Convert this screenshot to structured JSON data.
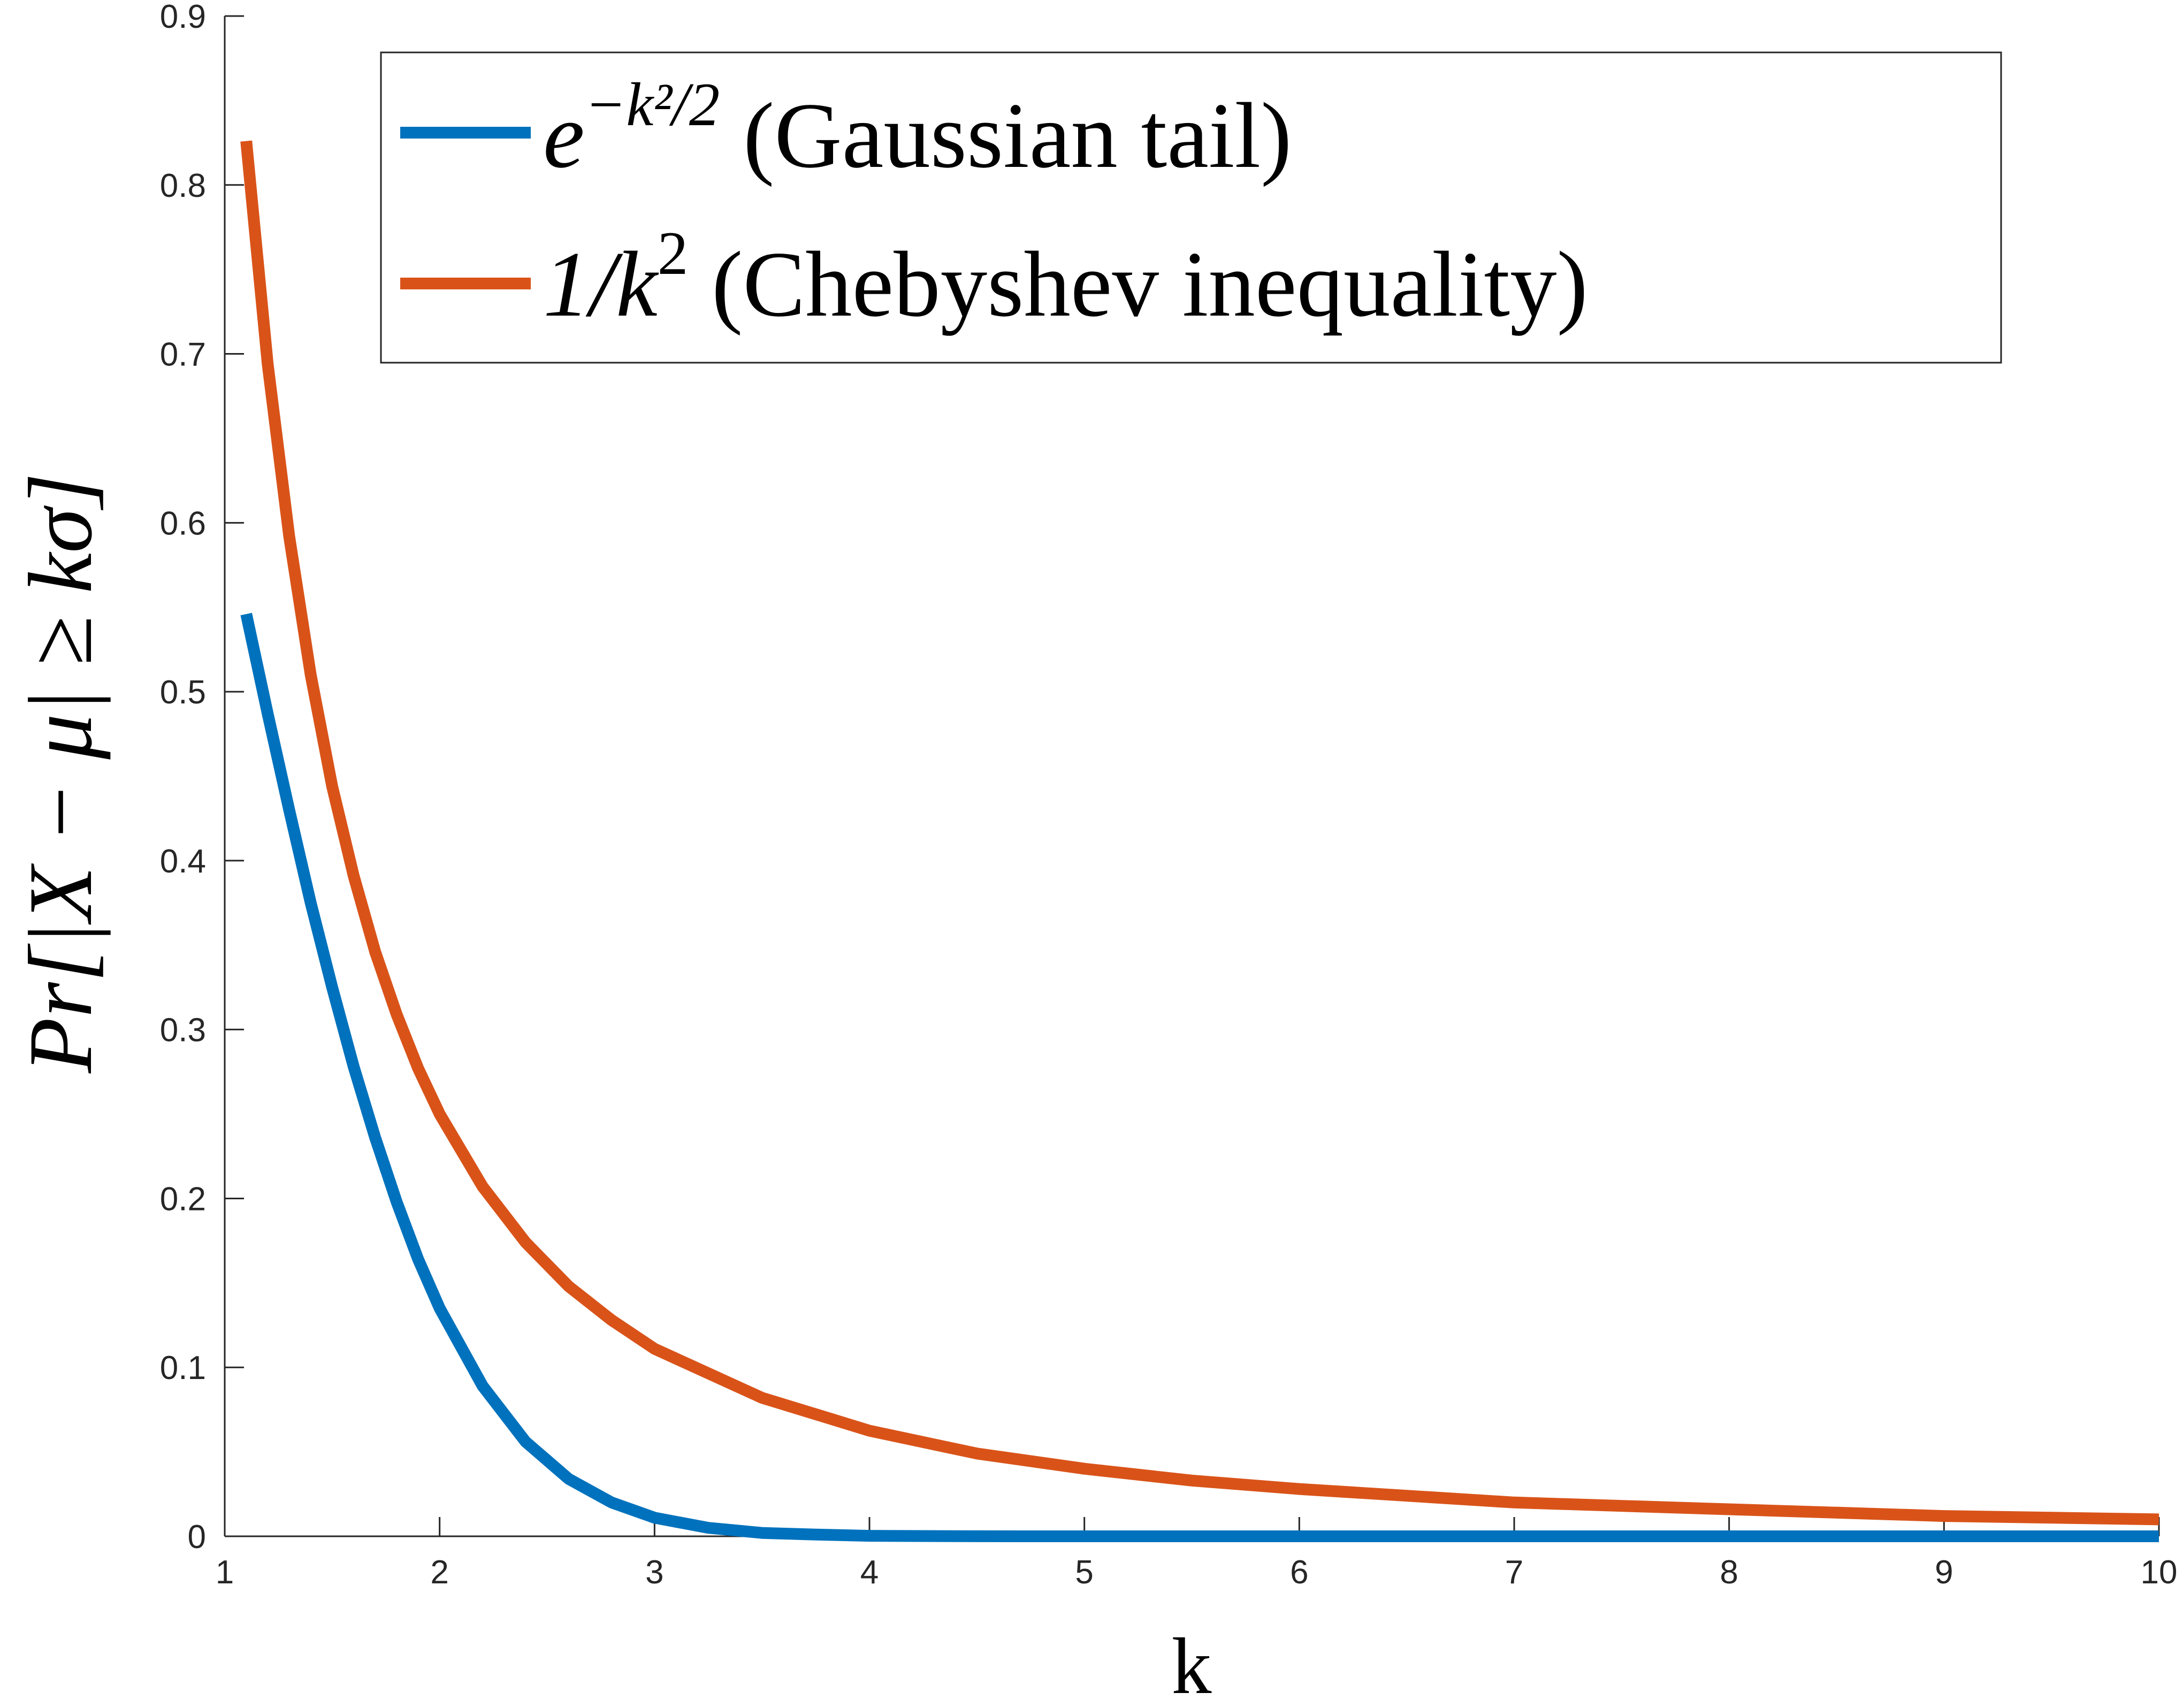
{
  "chart_data": {
    "type": "line",
    "title": "",
    "xlabel": "k",
    "ylabel": "Pr[|X − μ| ≥ kσ]",
    "xlim": [
      1,
      10
    ],
    "ylim": [
      0,
      0.9
    ],
    "grid": false,
    "x_ticks": [
      "1",
      "2",
      "3",
      "4",
      "5",
      "6",
      "7",
      "8",
      "9",
      "10"
    ],
    "y_ticks": [
      "0",
      "0.1",
      "0.2",
      "0.3",
      "0.4",
      "0.5",
      "0.6",
      "0.7",
      "0.8",
      "0.9"
    ],
    "legend": {
      "placement": "top-right",
      "entries": [
        {
          "series": 0,
          "base": "e",
          "sup": "−k²/2",
          "text": "(Gaussian tail)"
        },
        {
          "series": 1,
          "base": "1/k",
          "sup": "2",
          "text": "(Chebyshev inequality)"
        }
      ]
    },
    "series": [
      {
        "name": "e^{-k^2/2} (Gaussian tail)",
        "color": "#0072BD",
        "x": [
          1.1,
          1.2,
          1.3,
          1.4,
          1.5,
          1.6,
          1.7,
          1.8,
          1.9,
          2.0,
          2.2,
          2.4,
          2.6,
          2.8,
          3.0,
          3.25,
          3.5,
          3.75,
          4.0,
          4.5,
          5,
          6,
          7,
          8,
          9,
          10
        ],
        "y": [
          0.546,
          0.487,
          0.43,
          0.375,
          0.325,
          0.278,
          0.236,
          0.198,
          0.164,
          0.135,
          0.089,
          0.056,
          0.034,
          0.02,
          0.011,
          0.005,
          0.002,
          0.001,
          0.0003,
          4e-05,
          0,
          0,
          0,
          0,
          0,
          0
        ]
      },
      {
        "name": "1/k^2 (Chebyshev inequality)",
        "color": "#D95319",
        "x": [
          1.1,
          1.2,
          1.3,
          1.4,
          1.5,
          1.6,
          1.7,
          1.8,
          1.9,
          2.0,
          2.2,
          2.4,
          2.6,
          2.8,
          3.0,
          3.5,
          4.0,
          4.5,
          5,
          5.5,
          6,
          7,
          8,
          9,
          10
        ],
        "y": [
          0.826,
          0.694,
          0.592,
          0.51,
          0.444,
          0.391,
          0.346,
          0.309,
          0.277,
          0.25,
          0.207,
          0.174,
          0.148,
          0.128,
          0.111,
          0.082,
          0.0625,
          0.049,
          0.04,
          0.033,
          0.028,
          0.02,
          0.016,
          0.012,
          0.01
        ]
      }
    ]
  }
}
